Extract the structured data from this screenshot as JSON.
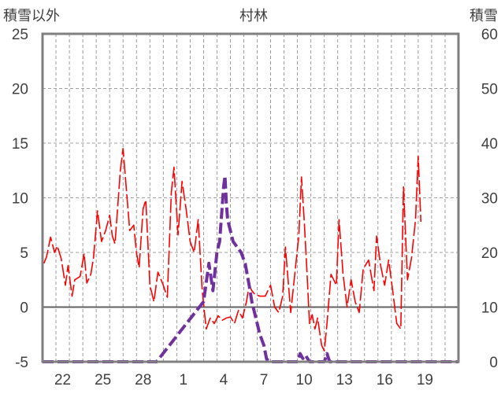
{
  "chart_data": {
    "type": "line",
    "title": "村林",
    "left_axis_label": "積雪以外",
    "right_axis_label": "積雪",
    "left_ylim": [
      -5,
      25
    ],
    "right_ylim": [
      0,
      60
    ],
    "left_ticks": [
      "25",
      "20",
      "15",
      "10",
      "5",
      "0",
      "-5"
    ],
    "right_ticks": [
      "60",
      "50",
      "40",
      "30",
      "20",
      "10",
      "0"
    ],
    "left_tick_values": [
      25,
      20,
      15,
      10,
      5,
      0,
      -5
    ],
    "x_days_range": [
      0,
      31
    ],
    "x_tick_labels": [
      "22",
      "25",
      "28",
      "1",
      "4",
      "7",
      "10",
      "13",
      "16",
      "19"
    ],
    "x_tick_positions": [
      1.5,
      4.5,
      7.5,
      10.5,
      13.5,
      16.5,
      19.5,
      22.5,
      25.5,
      28.5
    ],
    "grid": true,
    "colors": {
      "temperature": "#ff0000",
      "snow": "#7030a0",
      "frame": "#808080",
      "grid": "#808080"
    },
    "series": [
      {
        "axis": "left",
        "color": "#ff0000",
        "points": [
          [
            0.1,
            4.0
          ],
          [
            0.3,
            4.6
          ],
          [
            0.6,
            6.4
          ],
          [
            0.9,
            5.0
          ],
          [
            1.1,
            5.6
          ],
          [
            1.4,
            4.4
          ],
          [
            1.7,
            2.0
          ],
          [
            1.9,
            3.8
          ],
          [
            2.2,
            1.0
          ],
          [
            2.4,
            2.5
          ],
          [
            2.8,
            2.8
          ],
          [
            3.1,
            4.9
          ],
          [
            3.3,
            2.2
          ],
          [
            3.6,
            3.0
          ],
          [
            3.8,
            4.5
          ],
          [
            4.1,
            8.8
          ],
          [
            4.4,
            6.0
          ],
          [
            4.7,
            7.0
          ],
          [
            5.0,
            8.4
          ],
          [
            5.2,
            6.5
          ],
          [
            5.4,
            5.8
          ],
          [
            5.8,
            12.5
          ],
          [
            6.0,
            14.5
          ],
          [
            6.2,
            11.5
          ],
          [
            6.5,
            7.0
          ],
          [
            6.8,
            7.5
          ],
          [
            7.0,
            5.0
          ],
          [
            7.2,
            3.6
          ],
          [
            7.5,
            9.0
          ],
          [
            7.7,
            9.8
          ],
          [
            8.0,
            2.0
          ],
          [
            8.3,
            0.5
          ],
          [
            8.6,
            3.2
          ],
          [
            9.0,
            2.0
          ],
          [
            9.3,
            0.9
          ],
          [
            9.6,
            10.5
          ],
          [
            9.8,
            12.8
          ],
          [
            10.1,
            6.6
          ],
          [
            10.4,
            11.5
          ],
          [
            10.7,
            9.0
          ],
          [
            11.0,
            6.0
          ],
          [
            11.3,
            5.0
          ],
          [
            11.6,
            8.0
          ],
          [
            11.9,
            1.5
          ],
          [
            12.2,
            -2.0
          ],
          [
            12.5,
            -1.0
          ],
          [
            12.8,
            -1.5
          ],
          [
            13.1,
            -0.8
          ],
          [
            13.4,
            -1.2
          ],
          [
            13.7,
            -1.0
          ],
          [
            14.0,
            -0.9
          ],
          [
            14.3,
            -1.5
          ],
          [
            14.6,
            -0.3
          ],
          [
            14.9,
            -1.0
          ],
          [
            15.2,
            0.5
          ],
          [
            15.4,
            2.0
          ],
          [
            15.6,
            1.5
          ],
          [
            15.8,
            1.2
          ],
          [
            16.2,
            1.0
          ],
          [
            16.6,
            1.0
          ],
          [
            17.0,
            2.0
          ],
          [
            17.3,
            0.0
          ],
          [
            17.6,
            -0.5
          ],
          [
            17.9,
            1.0
          ],
          [
            18.1,
            5.5
          ],
          [
            18.5,
            -0.5
          ],
          [
            18.8,
            3.0
          ],
          [
            19.1,
            6.5
          ],
          [
            19.3,
            11.9
          ],
          [
            19.5,
            8.0
          ],
          [
            19.7,
            3.5
          ],
          [
            19.9,
            -1.5
          ],
          [
            20.1,
            -0.7
          ],
          [
            20.3,
            -2.0
          ],
          [
            20.5,
            -1.0
          ],
          [
            20.8,
            -3.5
          ],
          [
            21.0,
            -4.0
          ],
          [
            21.2,
            -1.5
          ],
          [
            21.5,
            3.0
          ],
          [
            21.9,
            2.0
          ],
          [
            22.1,
            8.0
          ],
          [
            22.4,
            3.0
          ],
          [
            22.7,
            0.0
          ],
          [
            23.0,
            2.5
          ],
          [
            23.3,
            0.5
          ],
          [
            23.6,
            -0.5
          ],
          [
            23.9,
            3.5
          ],
          [
            24.3,
            4.3
          ],
          [
            24.7,
            1.5
          ],
          [
            24.9,
            6.5
          ],
          [
            25.2,
            3.8
          ],
          [
            25.5,
            2.0
          ],
          [
            25.8,
            4.3
          ],
          [
            26.1,
            1.5
          ],
          [
            26.4,
            -1.5
          ],
          [
            26.7,
            -2.0
          ],
          [
            26.9,
            11.0
          ],
          [
            27.2,
            2.5
          ],
          [
            27.5,
            4.5
          ],
          [
            27.8,
            8.0
          ],
          [
            28.0,
            13.8
          ],
          [
            28.2,
            7.8
          ]
        ]
      },
      {
        "axis": "right",
        "color": "#7030a0",
        "points": [
          [
            0.0,
            0.0
          ],
          [
            8.5,
            0.0
          ],
          [
            12.0,
            11.0
          ],
          [
            12.4,
            18.0
          ],
          [
            12.7,
            13.0
          ],
          [
            13.0,
            20.0
          ],
          [
            13.2,
            22.0
          ],
          [
            13.5,
            32.0
          ],
          [
            13.6,
            34.0
          ],
          [
            13.7,
            29.0
          ],
          [
            13.8,
            26.0
          ],
          [
            14.2,
            22.0
          ],
          [
            14.5,
            21.0
          ],
          [
            14.8,
            20.0
          ],
          [
            15.1,
            18.0
          ],
          [
            15.4,
            14.0
          ],
          [
            15.6,
            11.0
          ],
          [
            15.8,
            9.0
          ],
          [
            16.0,
            7.0
          ],
          [
            16.2,
            5.0
          ],
          [
            16.5,
            3.0
          ],
          [
            16.7,
            0.5
          ],
          [
            17.0,
            0.0
          ],
          [
            19.0,
            0.0
          ],
          [
            19.2,
            1.5
          ],
          [
            19.4,
            0.6
          ],
          [
            19.6,
            1.2
          ],
          [
            19.9,
            0.0
          ],
          [
            21.0,
            0.0
          ],
          [
            21.2,
            1.5
          ],
          [
            21.4,
            0.0
          ],
          [
            31.0,
            0.0
          ]
        ]
      }
    ]
  }
}
